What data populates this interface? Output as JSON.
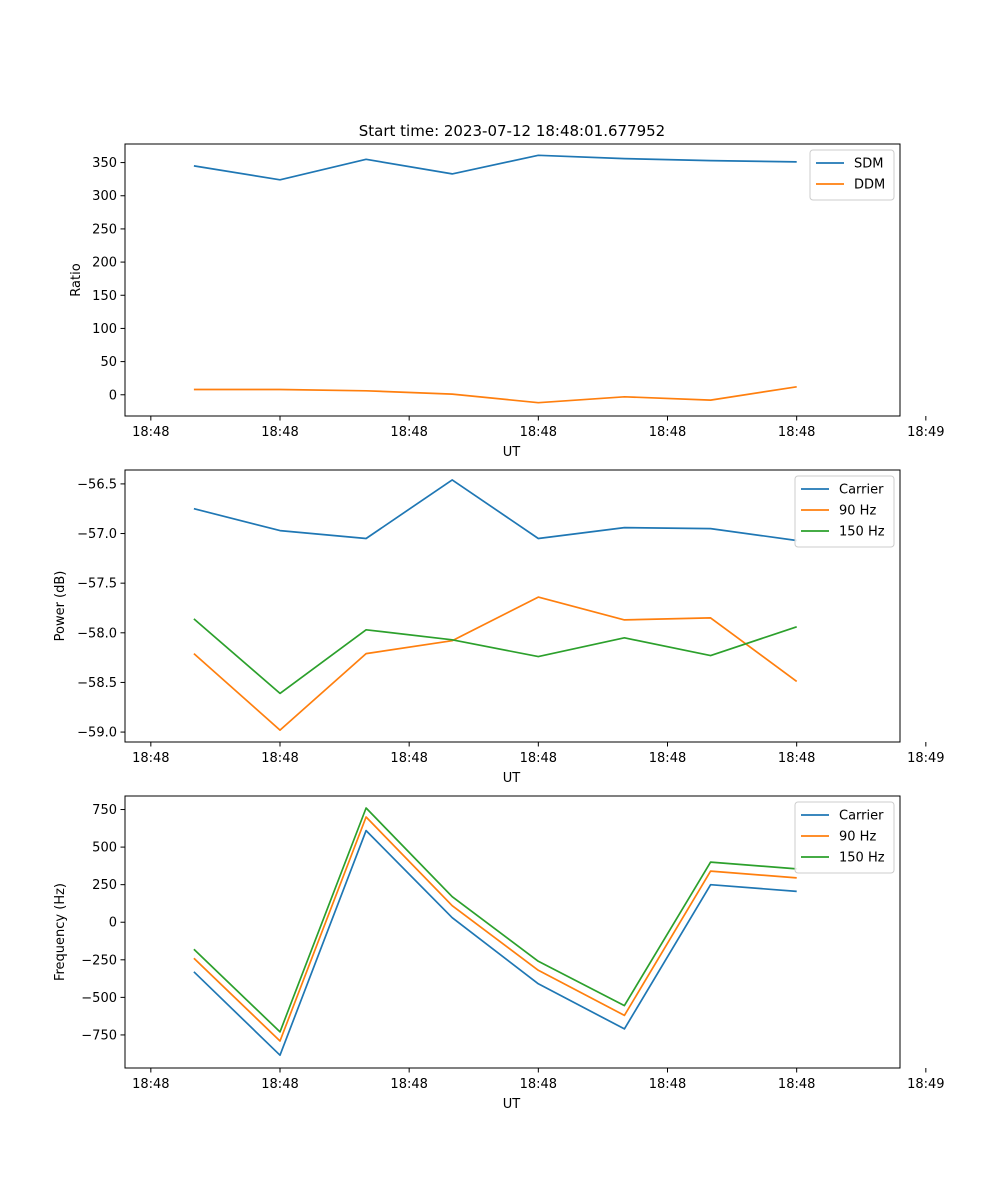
{
  "colors": {
    "blue": "#1f77b4",
    "orange": "#ff7f0e",
    "green": "#2ca02c"
  },
  "title": "Start time: 2023-07-12 18:48:01.677952",
  "chart_data": [
    {
      "type": "line",
      "title": "Start time: 2023-07-12 18:48:01.677952",
      "xlabel": "UT",
      "ylabel": "Ratio",
      "x": [
        1,
        2,
        3,
        4,
        5,
        6,
        7,
        8
      ],
      "xlim": [
        0.2,
        9.2
      ],
      "xticks": [
        0.5,
        2,
        3.5,
        5,
        6.5,
        8,
        9.5
      ],
      "xtick_labels": [
        "18:48",
        "18:48",
        "18:48",
        "18:48",
        "18:48",
        "18:48",
        "18:49"
      ],
      "ylim": [
        -32,
        378
      ],
      "yticks": [
        0,
        50,
        100,
        150,
        200,
        250,
        300,
        350
      ],
      "ytick_labels": [
        "0",
        "50",
        "100",
        "150",
        "200",
        "250",
        "300",
        "350"
      ],
      "legend": "top-right",
      "series": [
        {
          "name": "SDM",
          "color": "#1f77b4",
          "values": [
            345,
            324,
            355,
            333,
            361,
            356,
            353,
            351
          ]
        },
        {
          "name": "DDM",
          "color": "#ff7f0e",
          "values": [
            8,
            8,
            6,
            1,
            -12,
            -3,
            -8,
            12
          ]
        }
      ]
    },
    {
      "type": "line",
      "xlabel": "UT",
      "ylabel": "Power (dB)",
      "x": [
        1,
        2,
        3,
        4,
        5,
        6,
        7,
        8
      ],
      "xlim": [
        0.2,
        9.2
      ],
      "xticks": [
        0.5,
        2,
        3.5,
        5,
        6.5,
        8,
        9.5
      ],
      "xtick_labels": [
        "18:48",
        "18:48",
        "18:48",
        "18:48",
        "18:48",
        "18:48",
        "18:49"
      ],
      "ylim": [
        -59.1,
        -56.36
      ],
      "yticks": [
        -59.0,
        -58.5,
        -58.0,
        -57.5,
        -57.0,
        -56.5
      ],
      "ytick_labels": [
        "−59.0",
        "−58.5",
        "−58.0",
        "−57.5",
        "−57.0",
        "−56.5"
      ],
      "legend": "top-right",
      "series": [
        {
          "name": "Carrier",
          "color": "#1f77b4",
          "values": [
            -56.75,
            -56.97,
            -57.05,
            -56.46,
            -57.05,
            -56.94,
            -56.95,
            -57.07
          ]
        },
        {
          "name": "90 Hz",
          "color": "#ff7f0e",
          "values": [
            -58.21,
            -58.98,
            -58.21,
            -58.08,
            -57.64,
            -57.87,
            -57.85,
            -58.49
          ]
        },
        {
          "name": "150 Hz",
          "color": "#2ca02c",
          "values": [
            -57.86,
            -58.61,
            -57.97,
            -58.07,
            -58.24,
            -58.05,
            -58.23,
            -57.94
          ]
        }
      ]
    },
    {
      "type": "line",
      "xlabel": "UT",
      "ylabel": "Frequency (Hz)",
      "x": [
        1,
        2,
        3,
        4,
        5,
        6,
        7,
        8
      ],
      "xlim": [
        0.2,
        9.2
      ],
      "xticks": [
        0.5,
        2,
        3.5,
        5,
        6.5,
        8,
        9.5
      ],
      "xtick_labels": [
        "18:48",
        "18:48",
        "18:48",
        "18:48",
        "18:48",
        "18:48",
        "18:49"
      ],
      "ylim": [
        -970,
        840
      ],
      "yticks": [
        -750,
        -500,
        -250,
        0,
        250,
        500,
        750
      ],
      "ytick_labels": [
        "−750",
        "−500",
        "−250",
        "0",
        "250",
        "500",
        "750"
      ],
      "legend": "top-right",
      "series": [
        {
          "name": "Carrier",
          "color": "#1f77b4",
          "values": [
            -330,
            -885,
            610,
            30,
            -410,
            -710,
            250,
            205
          ]
        },
        {
          "name": "90 Hz",
          "color": "#ff7f0e",
          "values": [
            -240,
            -790,
            700,
            110,
            -320,
            -620,
            340,
            295
          ]
        },
        {
          "name": "150 Hz",
          "color": "#2ca02c",
          "values": [
            -180,
            -730,
            760,
            170,
            -260,
            -555,
            400,
            355
          ]
        }
      ]
    }
  ]
}
